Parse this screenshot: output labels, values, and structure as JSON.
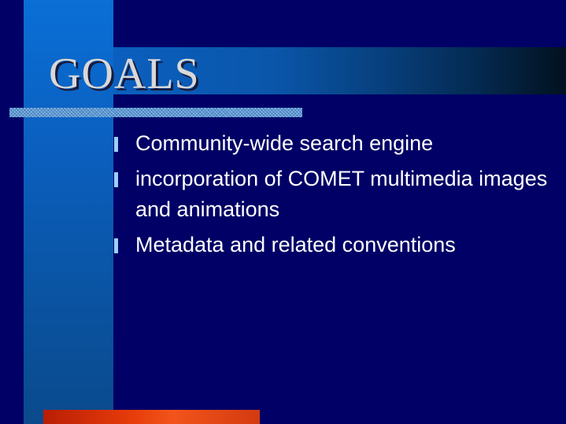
{
  "slide": {
    "title": "GOALS",
    "bullets": [
      {
        "text": "Community-wide search engine"
      },
      {
        "text": "incorporation of COMET multimedia images and animations"
      },
      {
        "text": "Metadata and related conventions"
      }
    ]
  },
  "colors": {
    "background": "#000066",
    "accent_blue": "#0a6fd6",
    "accent_red": "#e63b0a",
    "title_text": "#d8d8d8",
    "bullet_text": "#ffffff",
    "bullet_marker": "#9ad0ff"
  },
  "icons": {
    "bullet": "bar-bullet-icon"
  }
}
